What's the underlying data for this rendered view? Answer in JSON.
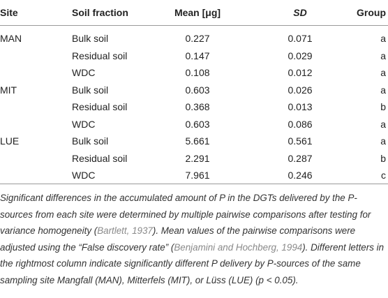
{
  "table": {
    "header": [
      "Site",
      "Soil fraction",
      "Mean [μg]",
      "SD",
      "Group"
    ],
    "sites": [
      {
        "name": "MAN",
        "rows": [
          [
            "Bulk soil",
            "0.227",
            "0.071",
            "a"
          ],
          [
            "Residual soil",
            "0.147",
            "0.029",
            "a"
          ],
          [
            "WDC",
            "0.108",
            "0.012",
            "a"
          ]
        ]
      },
      {
        "name": "MIT",
        "rows": [
          [
            "Bulk soil",
            "0.603",
            "0.026",
            "a"
          ],
          [
            "Residual soil",
            "0.368",
            "0.013",
            "b"
          ],
          [
            "WDC",
            "0.603",
            "0.086",
            "a"
          ]
        ]
      },
      {
        "name": "LUE",
        "rows": [
          [
            "Bulk soil",
            "5.661",
            "0.561",
            "a"
          ],
          [
            "Residual soil",
            "2.291",
            "0.287",
            "b"
          ],
          [
            "WDC",
            "7.961",
            "0.246",
            "c"
          ]
        ]
      }
    ]
  },
  "footnote": [
    "Significant differences in the accumulated amount of P in the DGTs delivered by the P-sources from each site were determined by multiple pairwise comparisons after testing for variance homogeneity (",
    "Bartlett, 1937",
    "). Mean values of the pairwise comparisons were adjusted using the “False discovery rate” (",
    "Benjamini and Hochberg, 1994",
    "). Different letters in the rightmost column indicate significantly different P delivery by P-sources of the same sampling site Mangfall (MAN), Mitterfels (MIT), or Lüss (LUE) (p < 0.05)."
  ]
}
